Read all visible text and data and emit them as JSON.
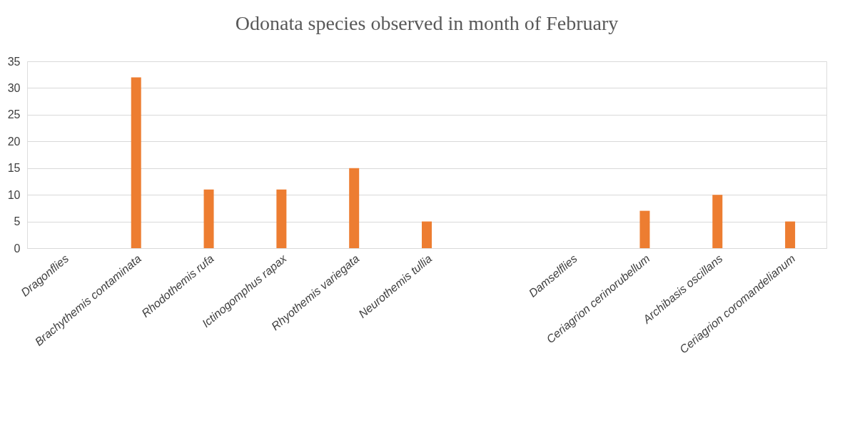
{
  "chart_data": {
    "type": "bar",
    "title": "Odonata species observed in month of February",
    "categories": [
      "Dragonflies",
      "Brachythemis contaminata",
      "Rhodothemis rufa",
      "Ictinogomphus rapax",
      "Rhyothemis variegata",
      "Neurothemis tullia",
      null,
      "Damselflies",
      "Ceriagrion cerinorubellum",
      "Archibasis oscillans",
      "Ceriagrion coromandelianum"
    ],
    "values": [
      null,
      32,
      11,
      11,
      15,
      5,
      null,
      null,
      7,
      10,
      5
    ],
    "color": "#ed7d31",
    "ylim": [
      0,
      35
    ],
    "yticks": [
      0,
      5,
      10,
      15,
      20,
      25,
      30,
      35
    ],
    "grid": "y"
  }
}
